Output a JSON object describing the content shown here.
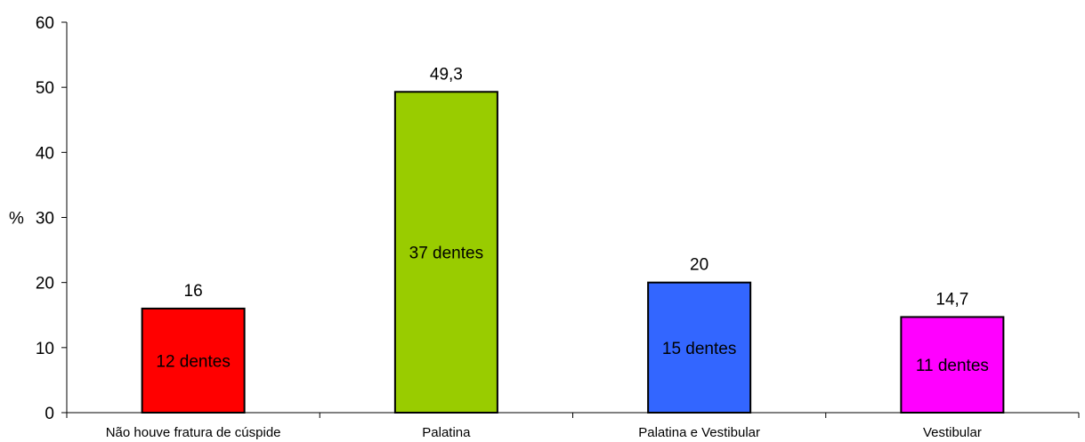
{
  "chart_data": {
    "type": "bar",
    "title": "",
    "xlabel": "",
    "ylabel": "%",
    "ylim": [
      0,
      60
    ],
    "yticks": [
      0,
      10,
      20,
      30,
      40,
      50,
      60
    ],
    "grid": false,
    "categories": [
      "Não houve fratura de cúspide",
      "Palatina",
      "Palatina e Vestibular",
      "Vestibular"
    ],
    "values": [
      16,
      49.3,
      20,
      14.7
    ],
    "value_labels": [
      "16",
      "49,3",
      "20",
      "14,7"
    ],
    "bar_labels": [
      "12 dentes",
      "37 dentes",
      "15 dentes",
      "11 dentes"
    ],
    "colors": [
      "#ff0000",
      "#99cc00",
      "#3366ff",
      "#ff00ff"
    ]
  }
}
